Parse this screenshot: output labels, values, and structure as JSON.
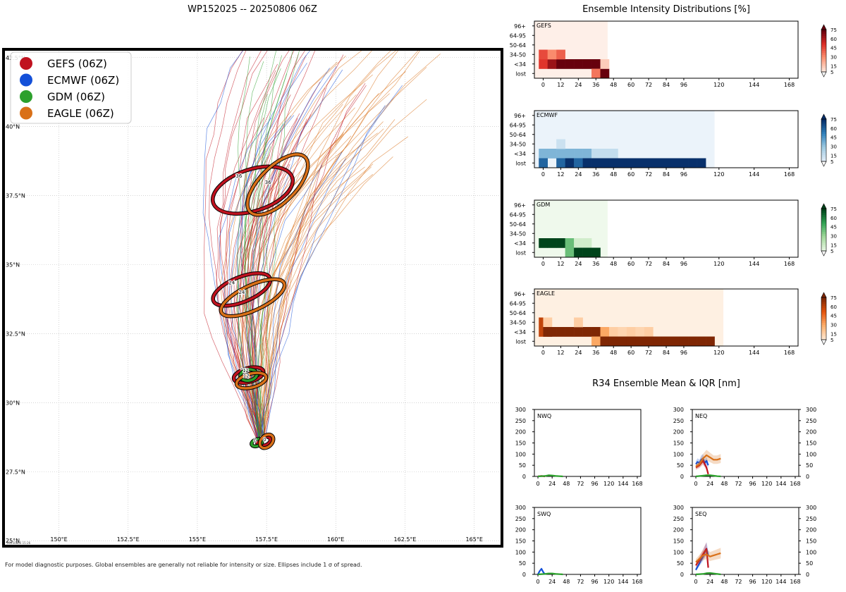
{
  "colors": {
    "gefs": "#c0121f",
    "ecmwf": "#1450d8",
    "gdm": "#2ca02c",
    "eagle": "#d97018"
  },
  "map": {
    "title": "WP152025 -- 20250806 06Z",
    "footnote": "For model diagnostic purposes. Global ensembles are generally not reliable for intensity or size. Ellipses include 1 σ of spread.",
    "timestamp": "20250806 15:26"
  },
  "chart_data": [
    {
      "type": "scatter",
      "title": "WP152025 -- 20250806 06Z",
      "xlim": [
        148,
        166
      ],
      "ylim": [
        24.8,
        42.8
      ],
      "xticks": [
        150,
        152.5,
        155,
        157.5,
        160,
        162.5,
        165
      ],
      "xtick_labels": [
        "150°E",
        "152.5°E",
        "155°E",
        "157.5°E",
        "160°E",
        "162.5°E",
        "165°E"
      ],
      "yticks": [
        25,
        27.5,
        30,
        32.5,
        35,
        37.5,
        40,
        42.5
      ],
      "ytick_labels": [
        "25°N",
        "27.5°N",
        "30°N",
        "32.5°N",
        "35°N",
        "37.5°N",
        "40°N",
        "42.5°N"
      ],
      "legend": [
        "GEFS (06Z)",
        "ECMWF (06Z)",
        "GDM (06Z)",
        "EAGLE (06Z)"
      ],
      "legend_keys": [
        "gefs",
        "ecmwf",
        "gdm",
        "eagle"
      ],
      "ellipses": [
        {
          "model": "gefs",
          "tau": "0",
          "lon": 157.4,
          "lat": 28.6,
          "rx": 0.25,
          "ry": 0.15,
          "angle": 20
        },
        {
          "model": "gdm",
          "tau": "0",
          "lon": 157.15,
          "lat": 28.55,
          "rx": 0.2,
          "ry": 0.12,
          "angle": 20
        },
        {
          "model": "eagle",
          "tau": "0",
          "lon": 157.5,
          "lat": 28.6,
          "rx": 0.28,
          "ry": 0.2,
          "angle": 45
        },
        {
          "model": "gefs",
          "tau": "12",
          "lon": 156.85,
          "lat": 31.0,
          "rx": 0.55,
          "ry": 0.25,
          "angle": 15
        },
        {
          "model": "gdm",
          "tau": "12",
          "lon": 156.85,
          "lat": 31.0,
          "rx": 0.3,
          "ry": 0.2,
          "angle": 10
        },
        {
          "model": "eagle",
          "tau": "12",
          "lon": 156.95,
          "lat": 30.8,
          "rx": 0.55,
          "ry": 0.25,
          "angle": 15
        },
        {
          "model": "gefs",
          "tau": "24",
          "lon": 156.6,
          "lat": 34.1,
          "rx": 1.1,
          "ry": 0.45,
          "angle": 22
        },
        {
          "model": "eagle",
          "tau": "24",
          "lon": 157.0,
          "lat": 33.8,
          "rx": 1.25,
          "ry": 0.45,
          "angle": 25
        },
        {
          "model": "gefs",
          "tau": "36",
          "lon": 157.0,
          "lat": 37.7,
          "rx": 1.5,
          "ry": 0.75,
          "angle": 18
        },
        {
          "model": "eagle",
          "tau": "36",
          "lon": 157.9,
          "lat": 37.9,
          "rx": 1.4,
          "ry": 0.65,
          "angle": 45
        }
      ]
    },
    {
      "type": "heatmap",
      "title": "Ensemble Intensity Distributions [%]",
      "panels": [
        {
          "name": "GEFS",
          "key": "gefs",
          "valid_to": 44,
          "cells": [
            [
              0,
              "<34",
              50
            ],
            [
              6,
              "<34",
              65
            ],
            [
              12,
              "<34",
              78
            ],
            [
              18,
              "<34",
              90
            ],
            [
              24,
              "<34",
              92
            ],
            [
              30,
              "<34",
              92
            ],
            [
              36,
              "<34",
              75
            ],
            [
              0,
              "34-50",
              45
            ],
            [
              6,
              "34-50",
              30
            ],
            [
              12,
              "34-50",
              40
            ],
            [
              36,
              "lost",
              35
            ],
            [
              42,
              "lost",
              92
            ],
            [
              42,
              "<34",
              12
            ]
          ]
        },
        {
          "name": "ECMWF",
          "key": "ecmwf",
          "valid_to": 117,
          "cells": [
            [
              0,
              "<34",
              35
            ],
            [
              6,
              "<34",
              35
            ],
            [
              12,
              "<34",
              35
            ],
            [
              18,
              "<34",
              35
            ],
            [
              24,
              "<34",
              35
            ],
            [
              30,
              "<34",
              35
            ],
            [
              36,
              "<34",
              15
            ],
            [
              42,
              "<34",
              15
            ],
            [
              48,
              "<34",
              15
            ],
            [
              12,
              "34-50",
              12
            ],
            [
              0,
              "lost",
              60
            ],
            [
              12,
              "lost",
              60
            ],
            [
              18,
              "lost",
              92
            ],
            [
              24,
              "lost",
              60
            ],
            [
              30,
              "lost",
              92
            ],
            [
              36,
              "lost",
              92
            ],
            [
              42,
              "lost",
              92
            ],
            [
              48,
              "lost",
              92
            ],
            [
              54,
              "lost",
              92
            ],
            [
              60,
              "lost",
              92
            ],
            [
              66,
              "lost",
              92
            ],
            [
              72,
              "lost",
              92
            ],
            [
              78,
              "lost",
              92
            ],
            [
              84,
              "lost",
              92
            ],
            [
              90,
              "lost",
              92
            ],
            [
              96,
              "lost",
              92
            ],
            [
              102,
              "lost",
              92
            ],
            [
              108,
              "lost",
              92
            ]
          ]
        },
        {
          "name": "GDM",
          "key": "gdm",
          "valid_to": 44,
          "cells": [
            [
              0,
              "<34",
              92
            ],
            [
              6,
              "<34",
              92
            ],
            [
              12,
              "<34",
              92
            ],
            [
              18,
              "<34",
              40
            ],
            [
              24,
              "<34",
              12
            ],
            [
              30,
              "<34",
              12
            ],
            [
              18,
              "lost",
              40
            ],
            [
              24,
              "lost",
              92
            ],
            [
              30,
              "lost",
              92
            ],
            [
              36,
              "lost",
              92
            ]
          ]
        },
        {
          "name": "EAGLE",
          "key": "eagle",
          "valid_to": 123,
          "cells": [
            [
              0,
              "34-50",
              60
            ],
            [
              0,
              "<34",
              60
            ],
            [
              3,
              "34-50",
              15
            ],
            [
              3,
              "<34",
              92
            ],
            [
              6,
              "<34",
              92
            ],
            [
              12,
              "<34",
              92
            ],
            [
              18,
              "<34",
              92
            ],
            [
              24,
              "<34",
              92
            ],
            [
              30,
              "<34",
              92
            ],
            [
              36,
              "<34",
              92
            ],
            [
              24,
              "34-50",
              15
            ],
            [
              42,
              "<34",
              30
            ],
            [
              48,
              "<34",
              15
            ],
            [
              54,
              "<34",
              12
            ],
            [
              60,
              "<34",
              15
            ],
            [
              66,
              "<34",
              12
            ],
            [
              72,
              "<34",
              15
            ],
            [
              36,
              "lost",
              30
            ],
            [
              42,
              "lost",
              92
            ],
            [
              48,
              "lost",
              92
            ],
            [
              54,
              "lost",
              92
            ],
            [
              60,
              "lost",
              92
            ],
            [
              66,
              "lost",
              92
            ],
            [
              72,
              "lost",
              92
            ],
            [
              78,
              "lost",
              92
            ],
            [
              84,
              "lost",
              92
            ],
            [
              90,
              "lost",
              92
            ],
            [
              96,
              "lost",
              92
            ],
            [
              102,
              "lost",
              92
            ],
            [
              108,
              "lost",
              92
            ],
            [
              114,
              "lost",
              92
            ]
          ]
        }
      ],
      "y_categories": [
        "lost",
        "<34",
        "34-50",
        "50-64",
        "64-95",
        "96+"
      ],
      "x_ticks": [
        0,
        12,
        24,
        36,
        48,
        60,
        72,
        84,
        96,
        120,
        144,
        168
      ],
      "xlim": [
        -6,
        174
      ],
      "colorbar_ticks": [
        5,
        15,
        30,
        45,
        60,
        75
      ],
      "colorbar_labels": [
        "5",
        "15",
        "30",
        "45",
        "60",
        "75"
      ]
    },
    {
      "type": "line",
      "title": "R34 Ensemble Mean & IQR [nm]",
      "xlim": [
        -6,
        174
      ],
      "ylim": [
        0,
        300
      ],
      "x_ticks": [
        0,
        24,
        48,
        72,
        96,
        120,
        144,
        168
      ],
      "y_ticks": [
        0,
        50,
        100,
        150,
        200,
        250,
        300
      ],
      "panels": [
        {
          "name": "NWQ",
          "series": [
            {
              "model": "gefs",
              "x": [
                0,
                6,
                12
              ],
              "y": [
                0,
                2,
                0
              ]
            },
            {
              "model": "gdm",
              "x": [
                0,
                12,
                18,
                24,
                30,
                36,
                42
              ],
              "y": [
                0,
                2,
                5,
                4,
                2,
                1,
                0
              ]
            }
          ]
        },
        {
          "name": "NEQ",
          "series": [
            {
              "model": "ecmwf",
              "x": [
                0,
                3,
                6,
                9,
                12,
                15,
                18,
                21
              ],
              "y": [
                55,
                65,
                60,
                75,
                80,
                60,
                70,
                50
              ]
            },
            {
              "model": "gefs",
              "x": [
                0,
                6,
                12,
                18,
                21
              ],
              "y": [
                40,
                50,
                70,
                40,
                10
              ]
            },
            {
              "model": "eagle",
              "x": [
                0,
                6,
                12,
                18,
                24,
                30,
                36,
                42
              ],
              "y": [
                45,
                55,
                80,
                95,
                85,
                75,
                75,
                80
              ]
            },
            {
              "model": "gdm",
              "x": [
                0,
                12,
                18,
                24,
                30,
                36,
                42
              ],
              "y": [
                0,
                3,
                5,
                5,
                3,
                1,
                0
              ]
            }
          ]
        },
        {
          "name": "SWQ",
          "series": [
            {
              "model": "ecmwf",
              "x": [
                0,
                3,
                6,
                9,
                12
              ],
              "y": [
                0,
                15,
                25,
                10,
                0
              ]
            },
            {
              "model": "gdm",
              "x": [
                0,
                12,
                18,
                24,
                30,
                36,
                42
              ],
              "y": [
                0,
                2,
                4,
                4,
                2,
                1,
                0
              ]
            }
          ]
        },
        {
          "name": "SEQ",
          "series": [
            {
              "model": "ecmwf",
              "x": [
                0,
                6,
                12,
                15,
                18,
                21
              ],
              "y": [
                20,
                50,
                80,
                100,
                115,
                85
              ]
            },
            {
              "model": "gefs",
              "x": [
                0,
                6,
                12,
                18,
                21
              ],
              "y": [
                40,
                65,
                90,
                115,
                30
              ]
            },
            {
              "model": "eagle",
              "x": [
                0,
                6,
                12,
                18,
                24,
                30,
                36,
                42
              ],
              "y": [
                55,
                70,
                85,
                90,
                80,
                85,
                90,
                95
              ]
            },
            {
              "model": "gdm",
              "x": [
                0,
                12,
                18,
                24,
                30,
                36,
                42
              ],
              "y": [
                0,
                2,
                5,
                6,
                4,
                2,
                0
              ]
            }
          ]
        }
      ]
    }
  ]
}
